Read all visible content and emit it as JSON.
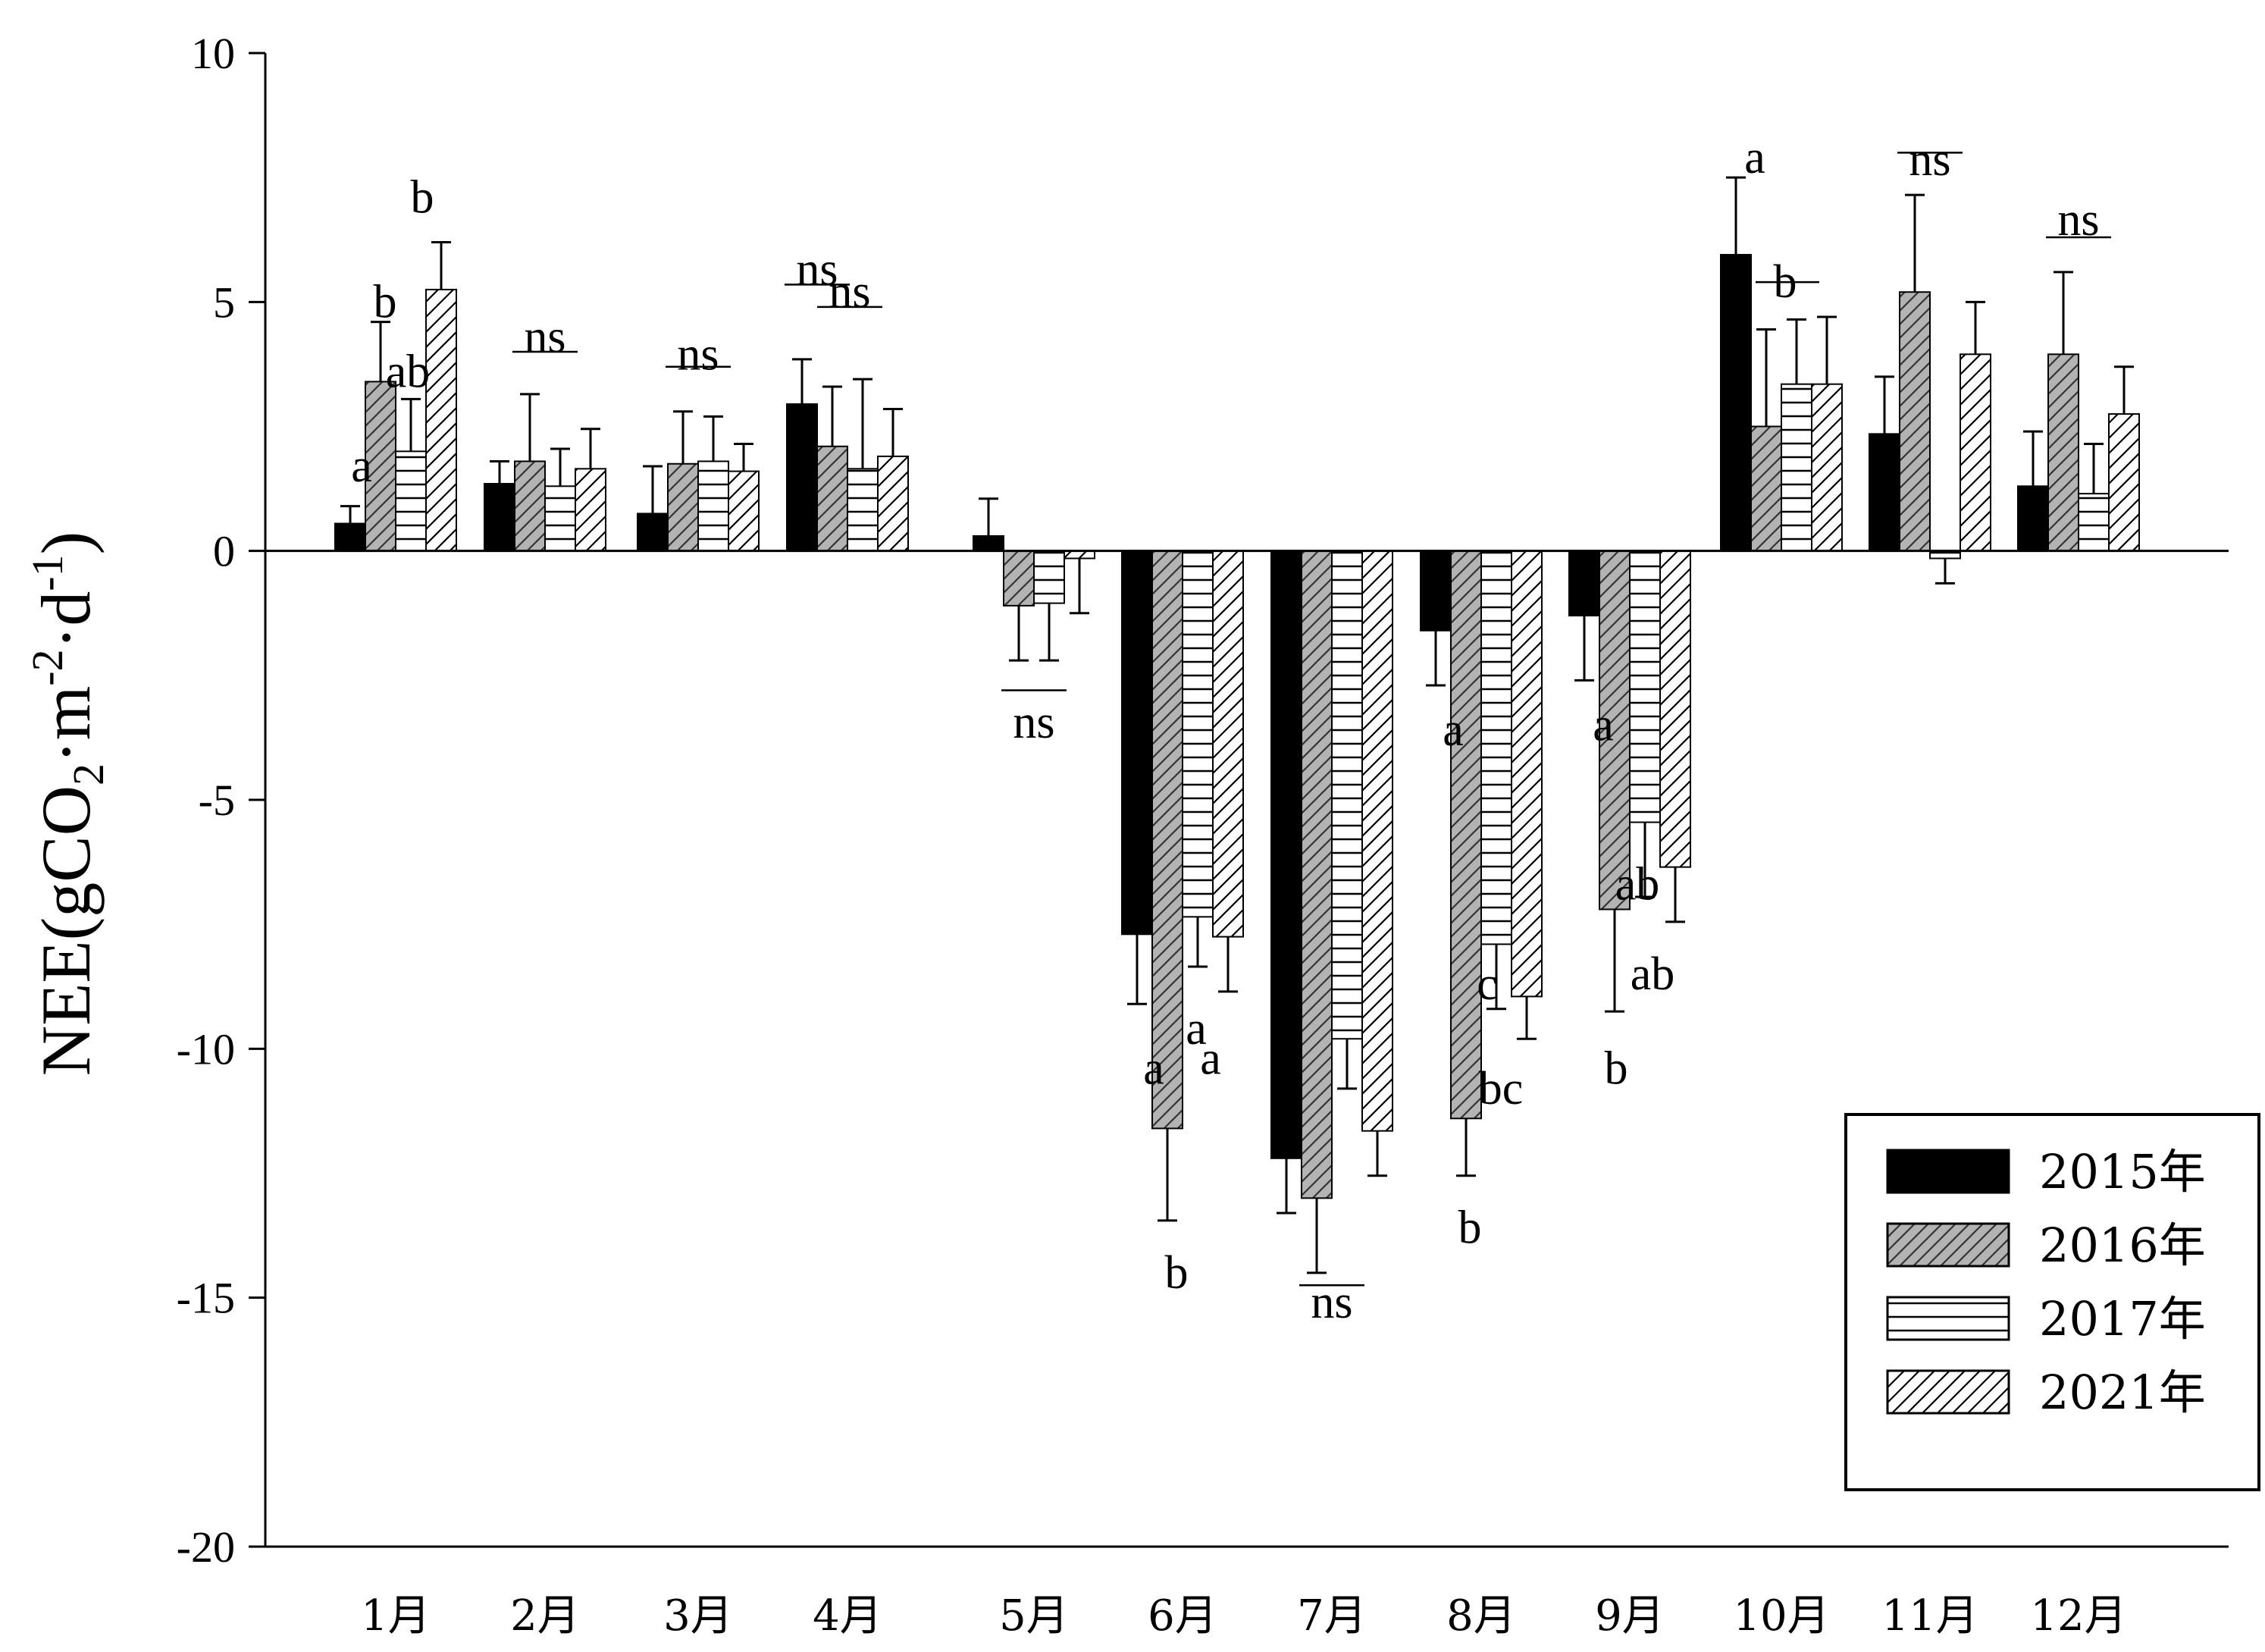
{
  "chart_data": {
    "type": "bar",
    "title": "",
    "xlabel": "",
    "ylabel": {
      "main": "NEE(gCO",
      "sub2": "2",
      "mid": "·m",
      "sup1": "-2",
      "mid2": "·d",
      "sup2": "-1",
      "end": ")"
    },
    "ylim": [
      -20,
      10
    ],
    "yticks": [
      10,
      5,
      0,
      -5,
      -10,
      -15,
      -20
    ],
    "categories": [
      "1月",
      "2月",
      "3月",
      "4月",
      "5月",
      "6月",
      "7月",
      "8月",
      "9月",
      "10月",
      "11月",
      "12月"
    ],
    "series": [
      {
        "name": "2015年",
        "pattern": "solid",
        "color": "#000000",
        "values": [
          0.55,
          1.35,
          0.75,
          2.95,
          0.3,
          -7.7,
          -12.2,
          -1.6,
          -1.3,
          5.95,
          2.35,
          1.3
        ],
        "errors": [
          0.35,
          0.45,
          0.95,
          0.9,
          0.75,
          1.4,
          1.1,
          1.1,
          1.3,
          1.55,
          1.15,
          1.1
        ]
      },
      {
        "name": "2016年",
        "pattern": "diag-gray",
        "color": "#b0b0b0",
        "values": [
          3.4,
          1.8,
          1.75,
          2.1,
          -1.1,
          -11.6,
          -13.0,
          -11.4,
          -7.2,
          2.5,
          5.2,
          3.95
        ],
        "errors": [
          1.2,
          1.35,
          1.05,
          1.2,
          1.1,
          1.85,
          1.5,
          1.15,
          2.05,
          1.95,
          1.95,
          1.65
        ]
      },
      {
        "name": "2017年",
        "pattern": "horizontal",
        "color": "#ffffff",
        "values": [
          2.0,
          1.3,
          1.8,
          1.65,
          -1.05,
          -7.35,
          -9.8,
          -7.9,
          -5.45,
          3.35,
          -0.15,
          1.15
        ],
        "errors": [
          1.05,
          0.75,
          0.9,
          1.8,
          1.15,
          1.0,
          1.0,
          1.3,
          1.5,
          1.3,
          0.5,
          1.0
        ]
      },
      {
        "name": "2021年",
        "pattern": "diag-white",
        "color": "#ffffff",
        "values": [
          5.25,
          1.65,
          1.6,
          1.9,
          -0.15,
          -7.75,
          -11.65,
          -8.95,
          -6.35,
          3.35,
          3.95,
          2.75
        ],
        "errors": [
          0.95,
          0.8,
          0.55,
          0.95,
          1.1,
          1.1,
          0.9,
          0.85,
          1.1,
          1.35,
          1.05,
          0.95
        ]
      }
    ],
    "annotations": [
      {
        "text": "a",
        "cat": 0,
        "value": 1.7,
        "dx": -0.45
      },
      {
        "text": "b",
        "cat": 0,
        "value": 5.0,
        "dx": -0.14
      },
      {
        "text": "ab",
        "cat": 0,
        "value": 3.6,
        "dx": 0.16
      },
      {
        "text": "b",
        "cat": 0,
        "value": 7.1,
        "dx": 0.35
      },
      {
        "text": "ns",
        "cat": 1,
        "value": 4.3,
        "dx": 0.0
      },
      {
        "text": "ns",
        "cat": 2,
        "value": 3.95,
        "dx": 0.0
      },
      {
        "text": "ns",
        "cat": 3,
        "value": 5.65,
        "dx": -0.4
      },
      {
        "text": "ns",
        "cat": 3,
        "value": 5.2,
        "dx": 0.03
      },
      {
        "text": "ns",
        "cat": 4,
        "value": -3.45,
        "dx": 0.0
      },
      {
        "text": "a",
        "cat": 5,
        "value": -10.4,
        "dx": -0.38
      },
      {
        "text": "b",
        "cat": 5,
        "value": -14.5,
        "dx": -0.08
      },
      {
        "text": "a",
        "cat": 5,
        "value": -9.6,
        "dx": 0.18
      },
      {
        "text": "a",
        "cat": 5,
        "value": -10.2,
        "dx": 0.37
      },
      {
        "text": "ns",
        "cat": 6,
        "value": -15.1,
        "dx": 0.0
      },
      {
        "text": "a",
        "cat": 7,
        "value": -3.6,
        "dx": -0.37
      },
      {
        "text": "b",
        "cat": 7,
        "value": -13.6,
        "dx": -0.15
      },
      {
        "text": "c",
        "cat": 7,
        "value": -8.7,
        "dx": 0.08
      },
      {
        "text": "bc",
        "cat": 7,
        "value": -10.8,
        "dx": 0.26
      },
      {
        "text": "a",
        "cat": 8,
        "value": -3.5,
        "dx": -0.35
      },
      {
        "text": "b",
        "cat": 8,
        "value": -10.4,
        "dx": -0.18
      },
      {
        "text": "ab",
        "cat": 8,
        "value": -6.7,
        "dx": 0.1
      },
      {
        "text": "ab",
        "cat": 8,
        "value": -8.5,
        "dx": 0.3
      },
      {
        "text": "a",
        "cat": 9,
        "value": 7.9,
        "dx": -0.35
      },
      {
        "text": "b",
        "cat": 9,
        "value": 5.4,
        "dx": 0.05
      },
      {
        "text": "ns",
        "cat": 10,
        "value": 7.85,
        "dx": 0.0
      },
      {
        "text": "ns",
        "cat": 11,
        "value": 6.65,
        "dx": 0.0
      }
    ],
    "ns_lines": [
      {
        "cat": 1,
        "y": 4.0,
        "half": 0.43
      },
      {
        "cat": 2,
        "y": 3.7,
        "half": 0.43
      },
      {
        "cat": 3,
        "y": 5.35,
        "half": 0.43,
        "dx": -0.4
      },
      {
        "cat": 3,
        "y": 4.9,
        "half": 0.43,
        "dx": 0.03
      },
      {
        "cat": 4,
        "y": -2.8,
        "half": 0.43
      },
      {
        "cat": 6,
        "y": -14.75,
        "half": 0.43
      },
      {
        "cat": 9,
        "y": 5.4,
        "half": 0.42,
        "dx": 0.08,
        "underText": true
      },
      {
        "cat": 10,
        "y": 8.0,
        "half": 0.43
      },
      {
        "cat": 11,
        "y": 6.3,
        "half": 0.43
      }
    ],
    "grid": false,
    "legend_position": "bottom-right"
  }
}
